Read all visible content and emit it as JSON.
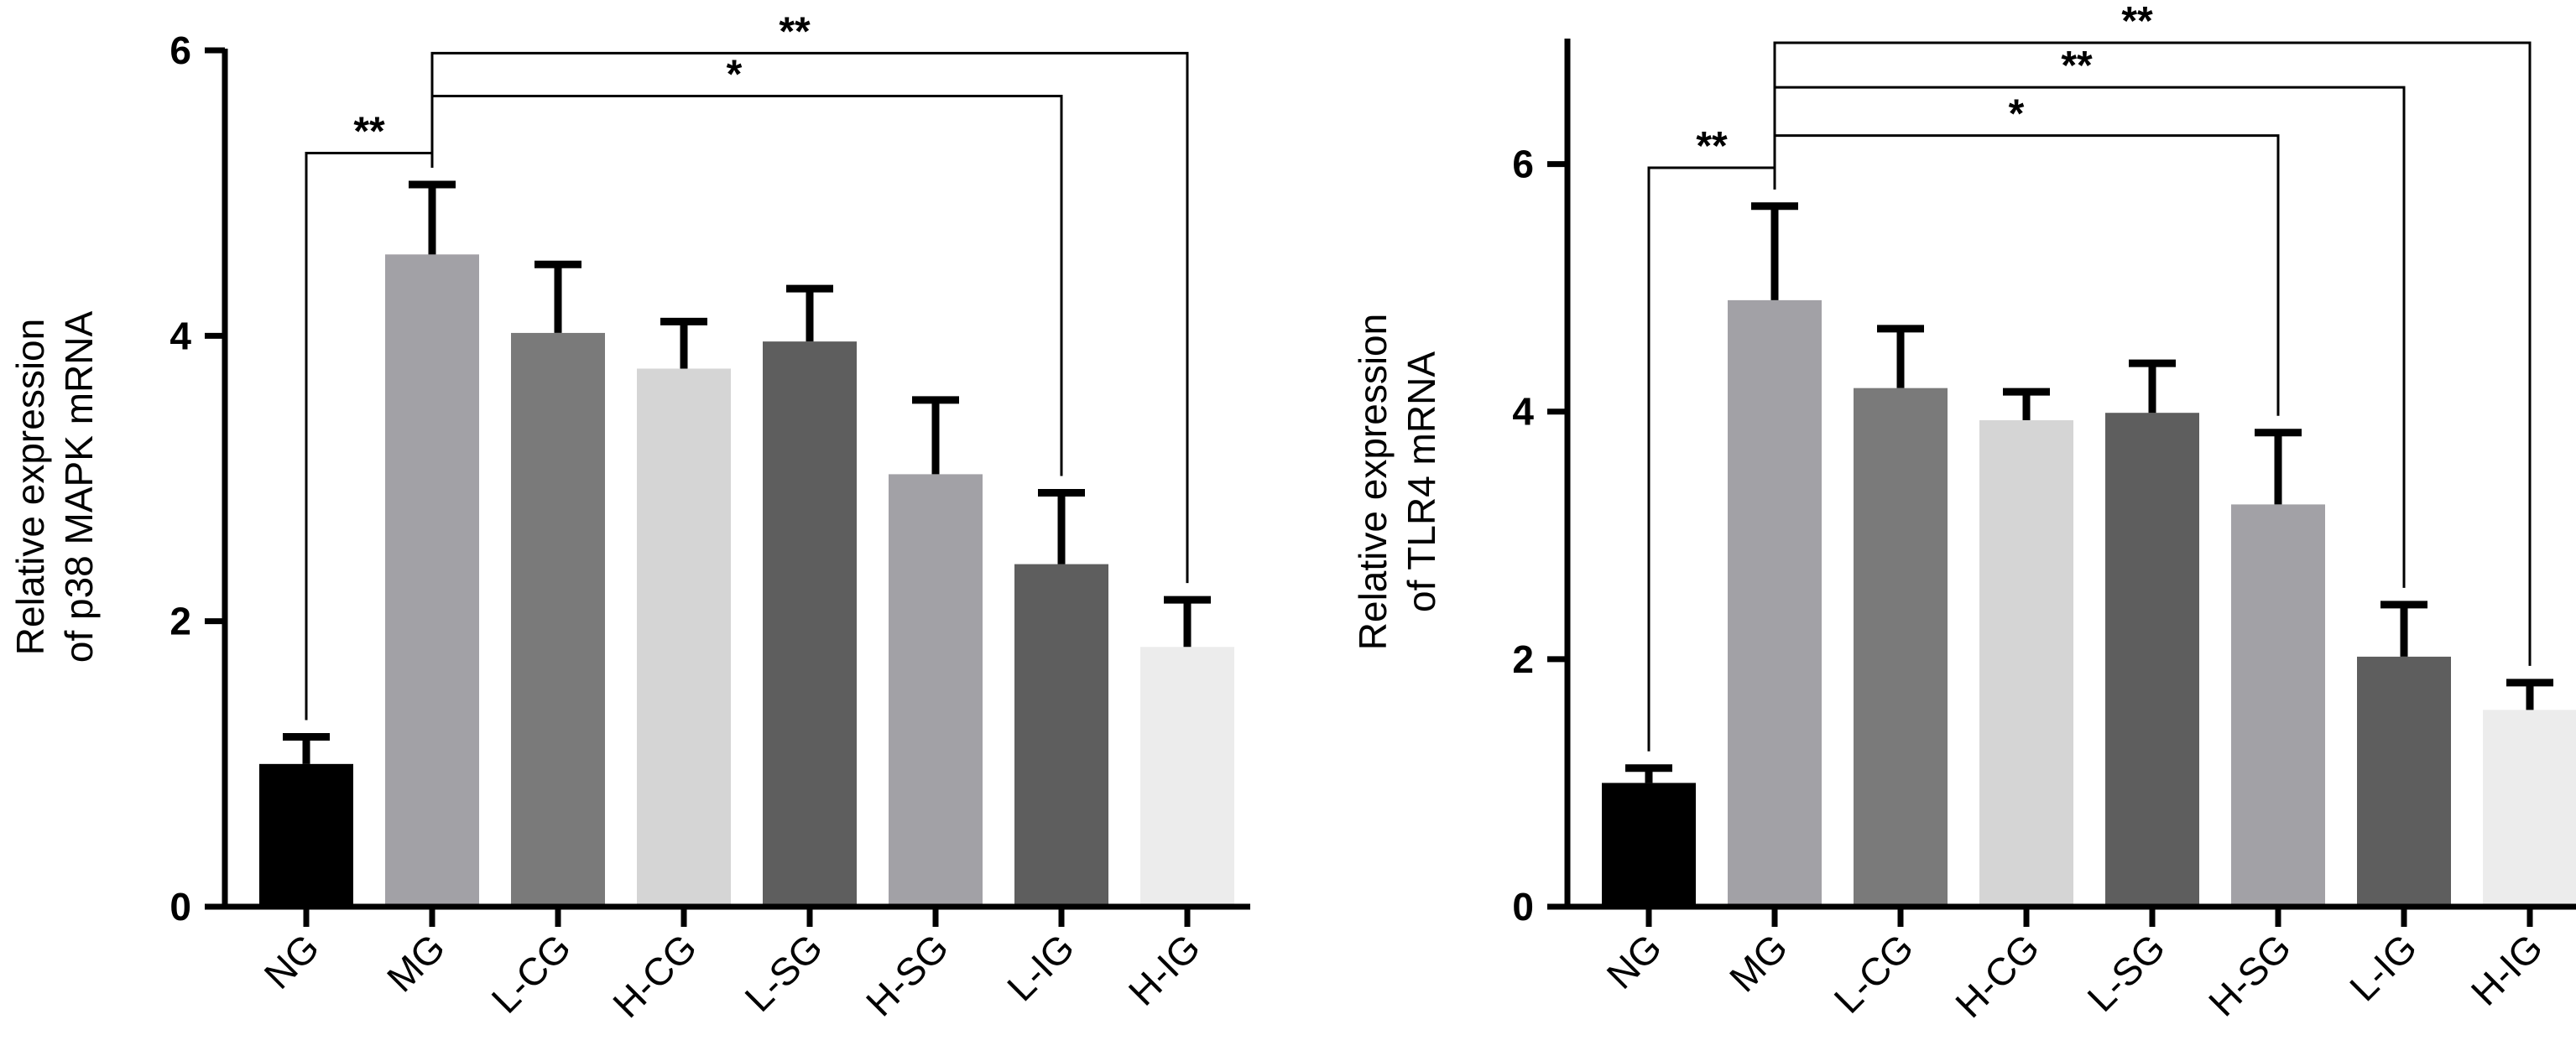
{
  "chart_data": [
    {
      "type": "bar",
      "categories": [
        "NG",
        "MG",
        "L-CG",
        "H-CG",
        "L-SG",
        "H-SG",
        "L-IG",
        "H-IG"
      ],
      "values": [
        1.0,
        4.57,
        4.02,
        3.77,
        3.96,
        3.03,
        2.4,
        1.82
      ],
      "errors": [
        0.19,
        0.49,
        0.48,
        0.33,
        0.37,
        0.52,
        0.5,
        0.33
      ],
      "colors": [
        "#000000",
        "#a2a1a6",
        "#7a7a7a",
        "#d5d5d5",
        "#5e5e5e",
        "#a2a1a6",
        "#5e5e5e",
        "#ececec"
      ],
      "ylabel_line1": "Relative expression",
      "ylabel_line2": "of p38 MAPK mRNA",
      "ylim": [
        0,
        6
      ],
      "yticks": [
        0,
        2,
        4,
        6
      ],
      "yticklabels": [
        "0",
        "2",
        "4",
        "6"
      ],
      "comparisons": [
        {
          "from": 0,
          "to": 1,
          "label": "**",
          "level": 5.28
        },
        {
          "from": 1,
          "to": 6,
          "label": "*",
          "level": 5.68
        },
        {
          "from": 1,
          "to": 7,
          "label": "**",
          "level": 5.98
        }
      ]
    },
    {
      "type": "bar",
      "categories": [
        "NG",
        "MG",
        "L-CG",
        "H-CG",
        "L-SG",
        "H-SG",
        "L-IG",
        "H-IG"
      ],
      "values": [
        1.0,
        4.9,
        4.19,
        3.93,
        3.99,
        3.25,
        2.02,
        1.59
      ],
      "errors": [
        0.12,
        0.76,
        0.48,
        0.23,
        0.4,
        0.58,
        0.42,
        0.22
      ],
      "colors": [
        "#000000",
        "#a2a1a6",
        "#7a7a7a",
        "#d5d5d5",
        "#5e5e5e",
        "#a2a1a6",
        "#5e5e5e",
        "#ececec"
      ],
      "ylabel_line1": "Relative expression",
      "ylabel_line2": "of TLR4 mRNA",
      "ylim": [
        0,
        7
      ],
      "yticks": [
        0,
        2,
        4,
        6
      ],
      "yticklabels": [
        "0",
        "2",
        "4",
        "6"
      ],
      "comparisons": [
        {
          "from": 0,
          "to": 1,
          "label": "**",
          "level": 5.97
        },
        {
          "from": 1,
          "to": 5,
          "label": "*",
          "level": 6.23
        },
        {
          "from": 1,
          "to": 6,
          "label": "**",
          "level": 6.62
        },
        {
          "from": 1,
          "to": 7,
          "label": "**",
          "level": 6.98
        }
      ]
    }
  ]
}
